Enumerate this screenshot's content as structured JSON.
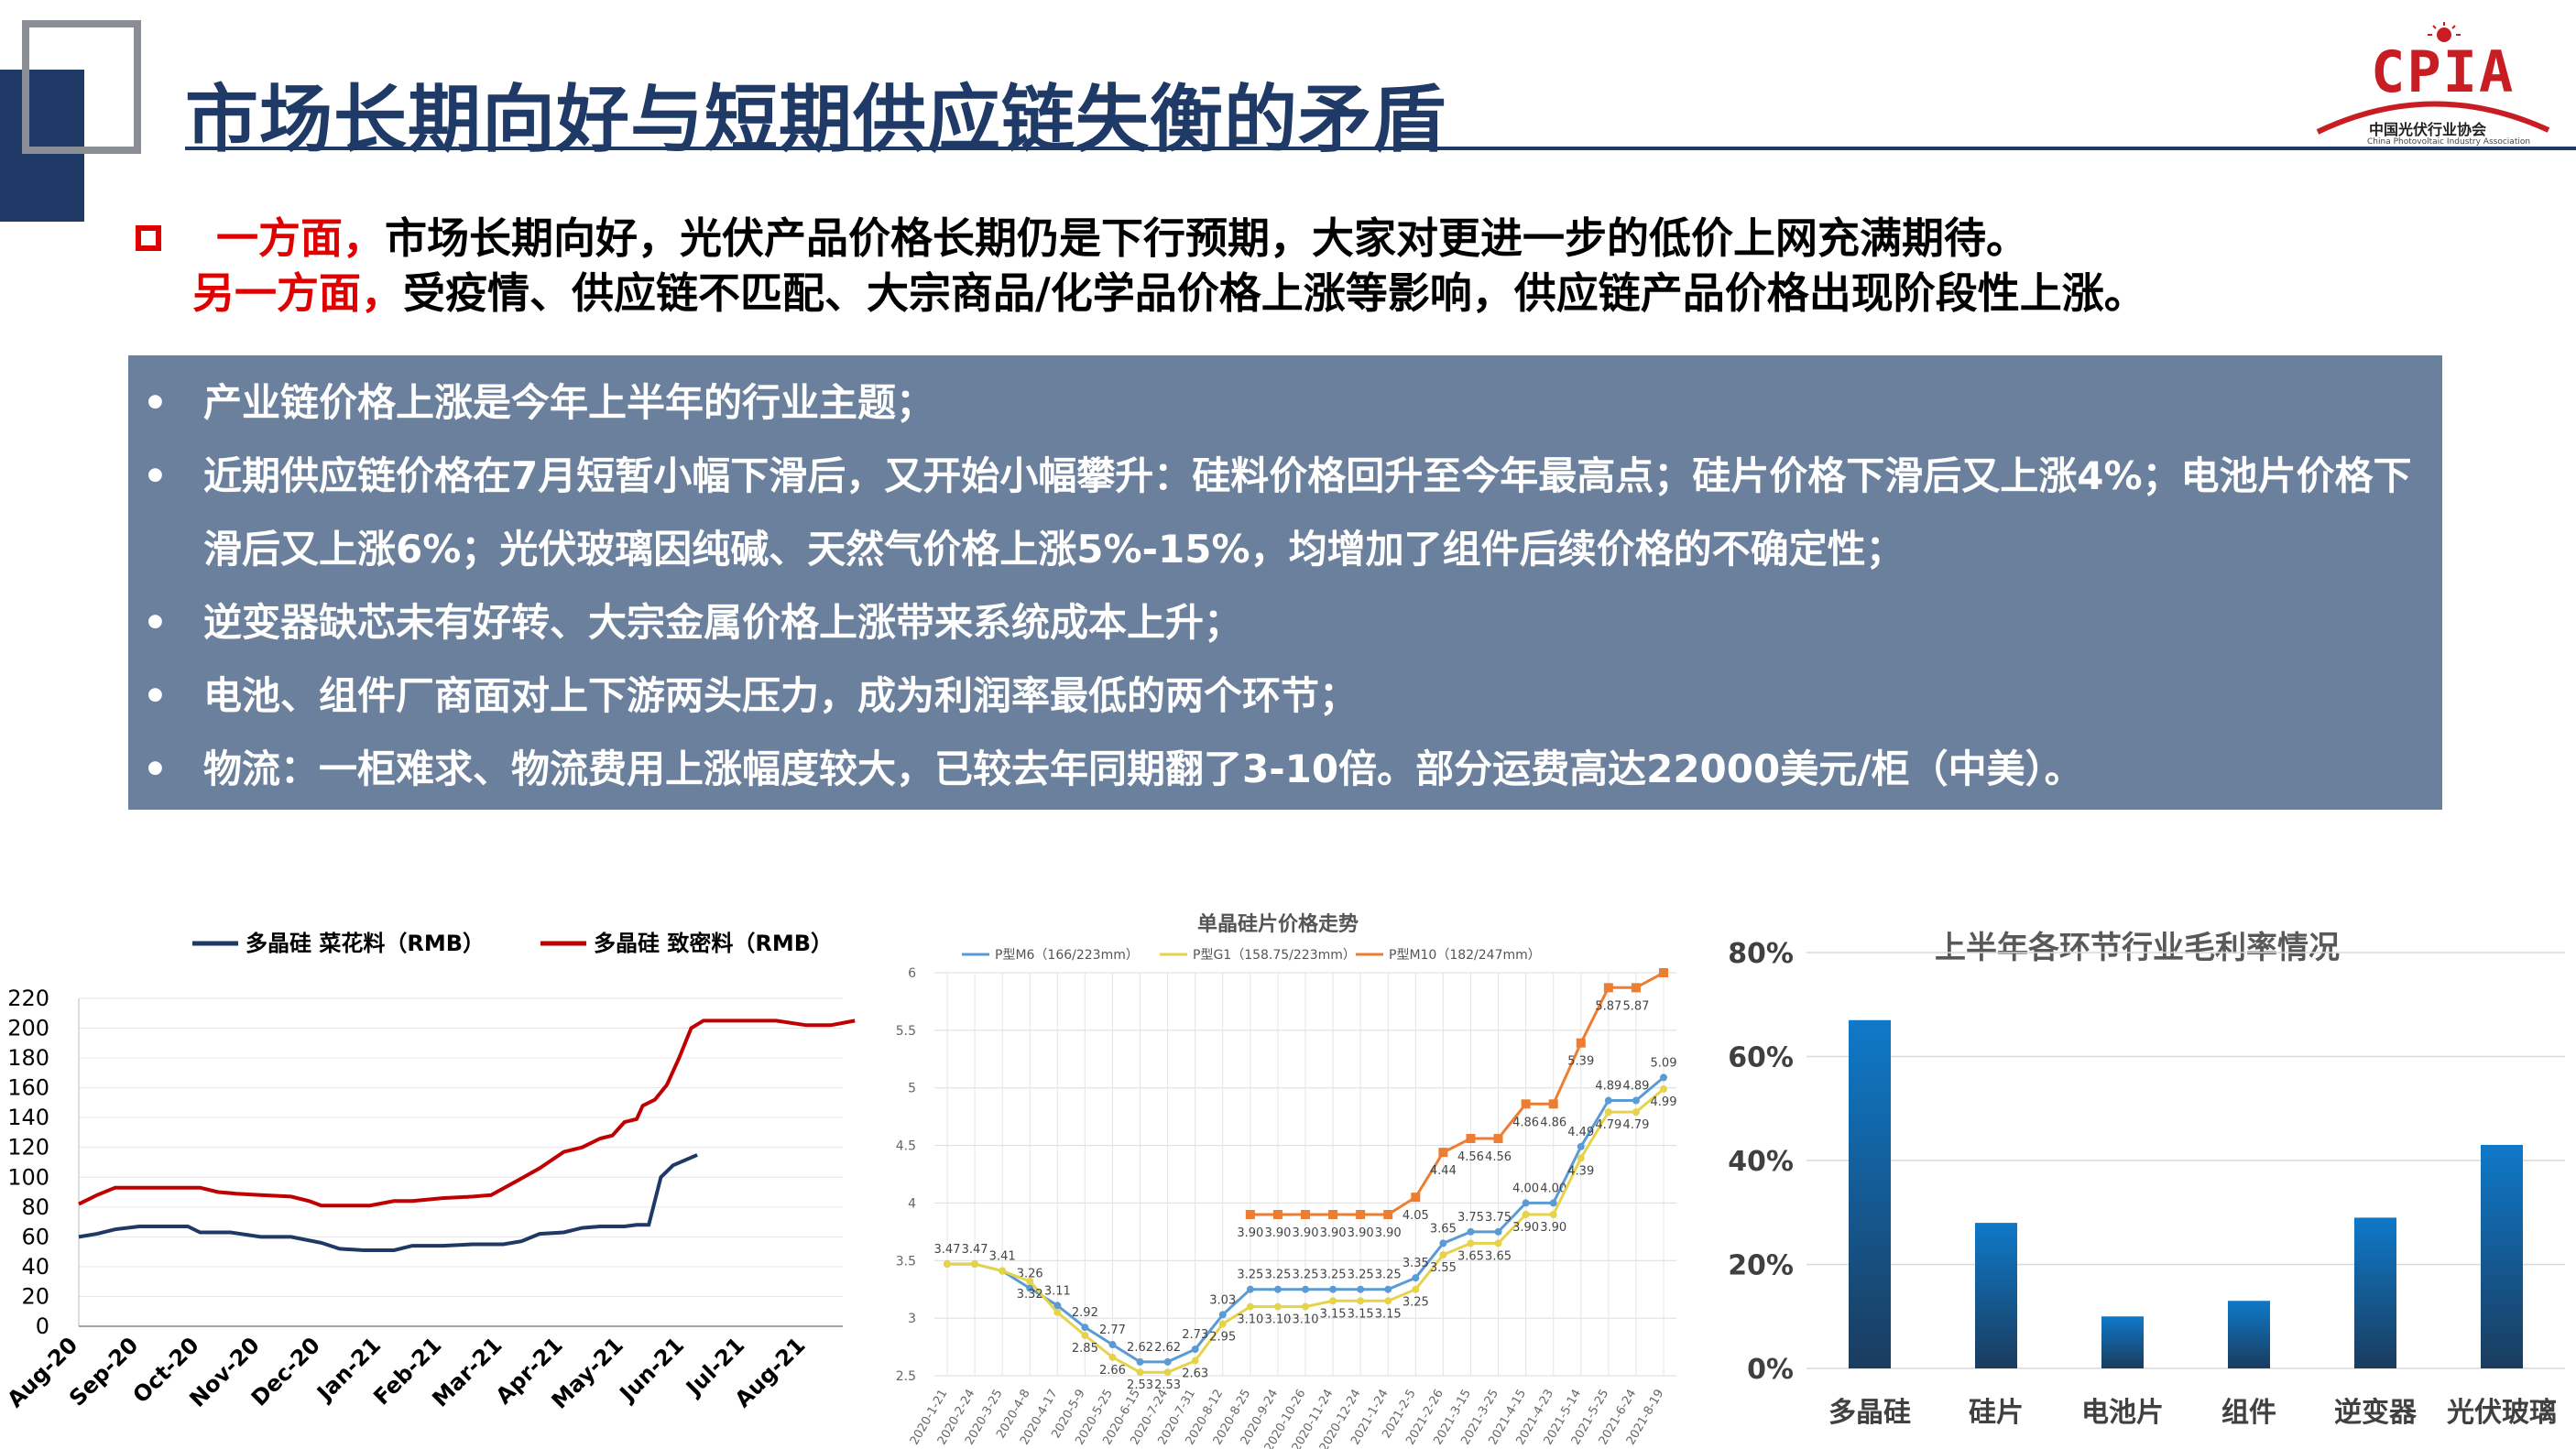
{
  "slide": {
    "title": "市场长期向好与短期供应链失衡的矛盾",
    "logo": {
      "mark": "CPIA",
      "cn": "中国光伏行业协会",
      "en": "China Photovoltaic Industry Association"
    },
    "intro": {
      "line1_red": "一方面，",
      "line1_text": "市场长期向好，光伏产品价格长期仍是下行预期，大家对更进一步的低价上网充满期待。",
      "line2_red": "另一方面，",
      "line2_text": "受疫情、供应链不匹配、大宗商品/化学品价格上涨等影响，供应链产品价格出现阶段性上涨。"
    },
    "bullets": [
      "产业链价格上涨是今年上半年的行业主题；",
      "近期供应链价格在7月短暂小幅下滑后，又开始小幅攀升：硅料价格回升至今年最高点；硅片价格下滑后又上涨4%；电池片价格下滑后又上涨6%；光伏玻璃因纯碱、天然气价格上涨5%-15%，均增加了组件后续价格的不确定性；",
      "逆变器缺芯未有好转、大宗金属价格上涨带来系统成本上升；",
      "电池、组件厂商面对上下游两头压力，成为利润率最低的两个环节；",
      "物流：一柜难求、物流费用上涨幅度较大，已较去年同期翻了3-10倍。部分运费高达22000美元/柜（中美）。"
    ],
    "bullet_glyph": "•"
  },
  "chart_data": [
    {
      "type": "line",
      "title": "",
      "xlabel": "",
      "ylabel": "",
      "ylim": [
        0,
        220
      ],
      "yticks": [
        "0",
        "20",
        "40",
        "60",
        "80",
        "100",
        "120",
        "140",
        "160",
        "180",
        "200",
        "220"
      ],
      "xtick_labels": [
        "Aug-20",
        "Sep-20",
        "Oct-20",
        "Nov-20",
        "Dec-20",
        "Jan-21",
        "Feb-21",
        "Mar-21",
        "Apr-21",
        "May-21",
        "Jun-21",
        "Jul-21",
        "Aug-21"
      ],
      "legend_position": "top",
      "colors": {
        "series1": "#1f3864",
        "series2": "#c00000"
      },
      "series": [
        {
          "name": "多晶硅 菜花料（RMB）",
          "points": [
            [
              0,
              60
            ],
            [
              0.3,
              62
            ],
            [
              0.6,
              65
            ],
            [
              1,
              67
            ],
            [
              1.5,
              67
            ],
            [
              1.8,
              67
            ],
            [
              2,
              63
            ],
            [
              2.5,
              63
            ],
            [
              3,
              60
            ],
            [
              3.5,
              60
            ],
            [
              4,
              56
            ],
            [
              4.3,
              52
            ],
            [
              4.7,
              51
            ],
            [
              5.2,
              51
            ],
            [
              5.5,
              54
            ],
            [
              6,
              54
            ],
            [
              6.5,
              55
            ],
            [
              7,
              55
            ],
            [
              7.3,
              57
            ],
            [
              7.6,
              62
            ],
            [
              8,
              63
            ],
            [
              8.3,
              66
            ],
            [
              8.6,
              67
            ],
            [
              9,
              67
            ],
            [
              9.2,
              68
            ],
            [
              9.4,
              68
            ],
            [
              9.6,
              100
            ],
            [
              9.8,
              108
            ],
            [
              10.2,
              115
            ]
          ]
        },
        {
          "name": "多晶硅 致密料（RMB）",
          "points": [
            [
              0,
              82
            ],
            [
              0.3,
              88
            ],
            [
              0.6,
              93
            ],
            [
              1,
              93
            ],
            [
              1.5,
              93
            ],
            [
              2,
              93
            ],
            [
              2.3,
              90
            ],
            [
              2.6,
              89
            ],
            [
              3,
              88
            ],
            [
              3.5,
              87
            ],
            [
              3.8,
              84
            ],
            [
              4,
              81
            ],
            [
              4.5,
              81
            ],
            [
              4.8,
              81
            ],
            [
              5.2,
              84
            ],
            [
              5.5,
              84
            ],
            [
              6,
              86
            ],
            [
              6.5,
              87
            ],
            [
              6.8,
              88
            ],
            [
              7.2,
              97
            ],
            [
              7.6,
              106
            ],
            [
              8,
              117
            ],
            [
              8.3,
              120
            ],
            [
              8.6,
              126
            ],
            [
              8.8,
              128
            ],
            [
              9,
              137
            ],
            [
              9.2,
              139
            ],
            [
              9.3,
              148
            ],
            [
              9.5,
              152
            ],
            [
              9.7,
              162
            ],
            [
              9.9,
              180
            ],
            [
              10.1,
              200
            ],
            [
              10.3,
              205
            ],
            [
              10.5,
              205
            ],
            [
              11,
              205
            ],
            [
              11.5,
              205
            ],
            [
              12,
              202
            ],
            [
              12.4,
              202
            ],
            [
              12.8,
              205
            ]
          ]
        }
      ]
    },
    {
      "type": "line",
      "title": "单晶硅片价格走势",
      "xlabel": "",
      "ylabel": "",
      "ylim": [
        2.5,
        6
      ],
      "yticks": [
        "2.5",
        "3",
        "3.5",
        "4",
        "4.5",
        "5",
        "5.5",
        "6"
      ],
      "legend_position": "top",
      "colors": {
        "m6": "#5b9bd5",
        "g1": "#e6d34a",
        "m10": "#ed7d31"
      },
      "x": [
        "2020-1-21",
        "2020-2-24",
        "2020-3-25",
        "2020-4-8",
        "2020-4-17",
        "2020-5-9",
        "2020-5-25",
        "2020-6-15",
        "2020-7-24",
        "2020-7-31",
        "2020-8-12",
        "2020-8-25",
        "2020-9-24",
        "2020-10-26",
        "2020-11-24",
        "2020-12-24",
        "2021-1-24",
        "2021-2-5",
        "2021-2-26",
        "2021-3-15",
        "2021-3-25",
        "2021-4-15",
        "2021-4-23",
        "2021-5-14",
        "2021-5-25",
        "2021-6-24",
        "2021-8-19"
      ],
      "series": [
        {
          "name": "P型M6（166/223mm）",
          "values": [
            3.47,
            3.47,
            3.41,
            3.26,
            3.11,
            2.92,
            2.77,
            2.62,
            2.62,
            2.73,
            3.03,
            3.25,
            3.25,
            3.25,
            3.25,
            3.25,
            3.25,
            3.35,
            3.65,
            3.75,
            3.75,
            4.0,
            4.0,
            4.49,
            4.89,
            4.89,
            5.09
          ]
        },
        {
          "name": "P型G1（158.75/223mm）",
          "values": [
            3.47,
            3.47,
            3.41,
            3.32,
            3.05,
            2.85,
            2.66,
            2.53,
            2.53,
            2.63,
            2.95,
            3.1,
            3.1,
            3.1,
            3.15,
            3.15,
            3.15,
            3.25,
            3.55,
            3.65,
            3.65,
            3.9,
            3.9,
            4.39,
            4.79,
            4.79,
            4.99
          ]
        },
        {
          "name": "P型M10（182/247mm）",
          "values": [
            null,
            null,
            null,
            null,
            null,
            null,
            null,
            null,
            null,
            null,
            null,
            3.9,
            3.9,
            3.9,
            3.9,
            3.9,
            3.9,
            4.05,
            4.44,
            4.56,
            4.56,
            4.86,
            4.86,
            5.39,
            5.87,
            5.87,
            6.0
          ]
        }
      ],
      "data_labels": {
        "m6": [
          "3.47",
          "3.47",
          "3.41",
          "3.26",
          "3.11",
          "2.92",
          "2.77",
          "2.62",
          "2.62",
          "2.73",
          "3.03",
          "3.25",
          "3.25",
          "3.25",
          "3.25",
          "3.25",
          "3.25",
          "3.35",
          "3.65",
          "3.75",
          "3.75",
          "4.00",
          "4.00",
          "4.49",
          "4.89",
          "4.89",
          "5.09"
        ],
        "g1": [
          "",
          "",
          "",
          "3.32",
          "",
          "2.85",
          "2.66",
          "2.53",
          "2.53",
          "2.63",
          "2.95",
          "3.10",
          "3.10",
          "3.10",
          "3.15",
          "3.15",
          "3.15",
          "3.25",
          "3.55",
          "3.65",
          "3.65",
          "3.90",
          "3.90",
          "4.39",
          "4.79",
          "4.79",
          "4.99"
        ],
        "m10": [
          "",
          "",
          "",
          "",
          "",
          "",
          "",
          "",
          "",
          "",
          "",
          "3.90",
          "3.90",
          "3.90",
          "3.90",
          "3.90",
          "3.90",
          "4.05",
          "4.44",
          "4.56",
          "4.56",
          "4.86",
          "4.86",
          "5.39",
          "5.87",
          "5.87",
          ""
        ]
      }
    },
    {
      "type": "bar",
      "title": "上半年各环节行业毛利率情况",
      "xlabel": "",
      "ylabel": "",
      "ylim": [
        0,
        80
      ],
      "yticks": [
        "0%",
        "20%",
        "40%",
        "60%",
        "80%"
      ],
      "categories": [
        "多晶硅",
        "硅片",
        "电池片",
        "组件",
        "逆变器",
        "光伏玻璃"
      ],
      "values": [
        67,
        28,
        10,
        13,
        29,
        43
      ],
      "colors": {
        "bar_top": "#0f79c9",
        "bar_bottom": "#1a3c5e"
      }
    }
  ]
}
